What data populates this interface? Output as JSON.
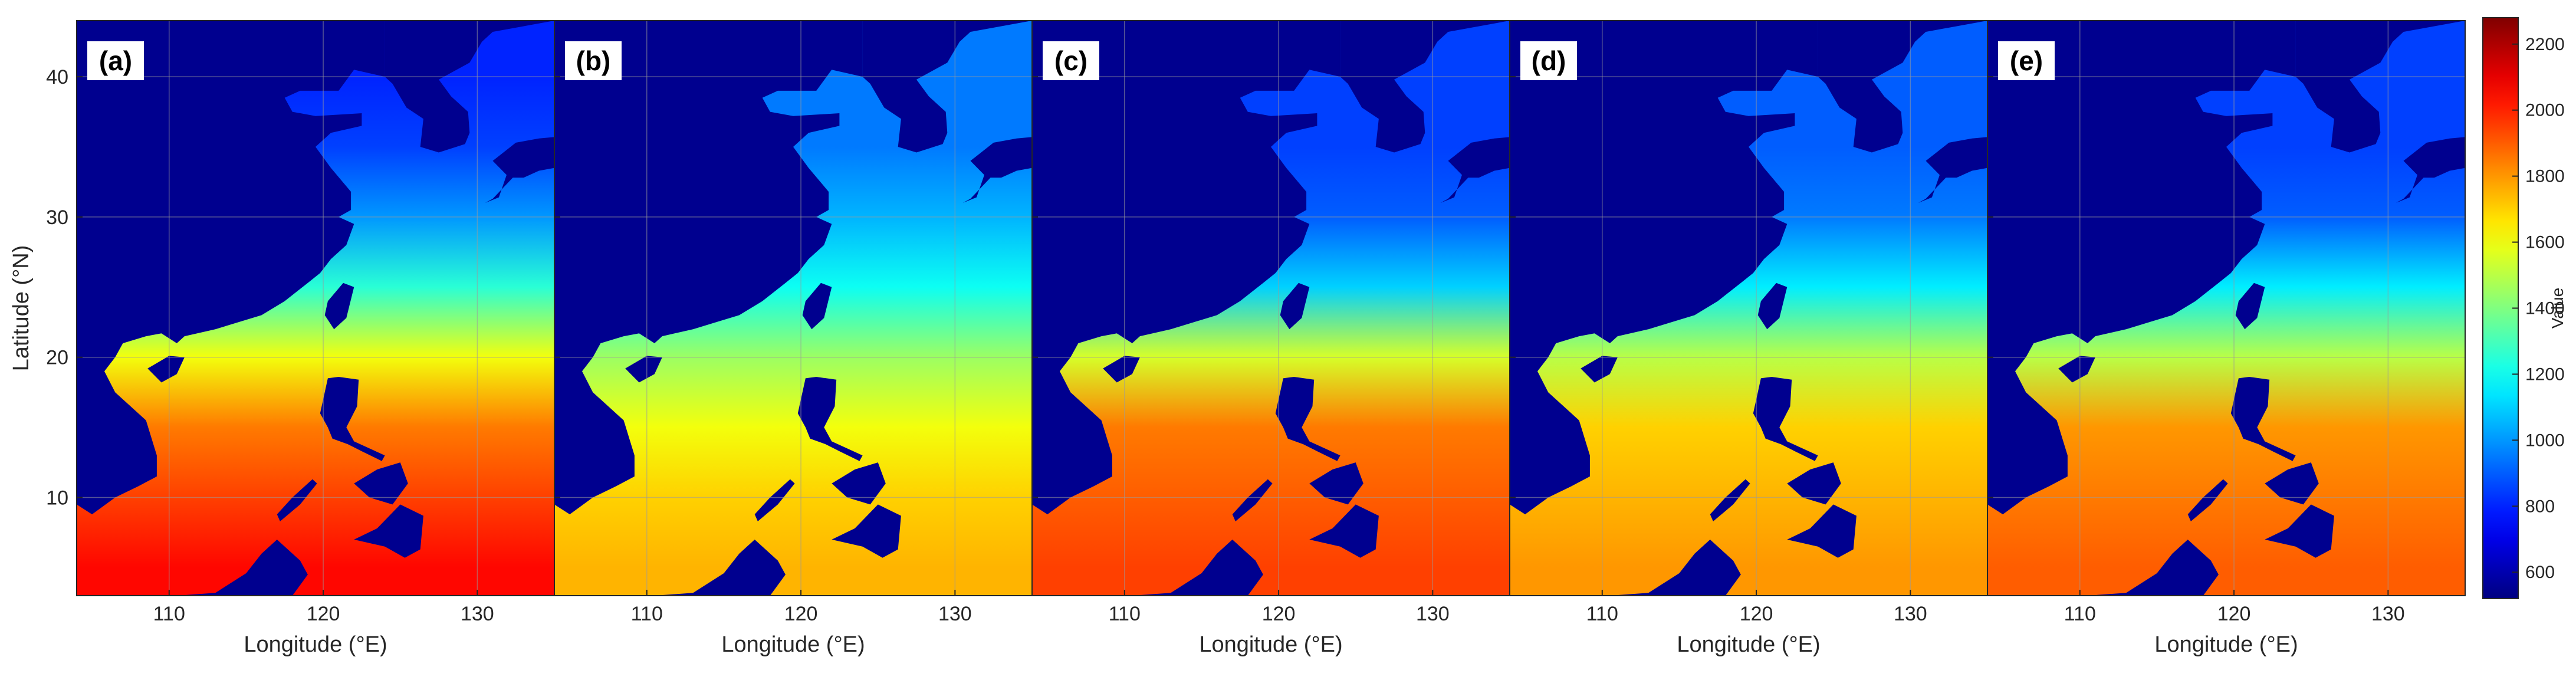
{
  "figure": {
    "colors": {
      "land": "#00008f",
      "axis": "#262626",
      "grid": "#9a9a9a",
      "label_box": "#ffffff"
    }
  },
  "chart_data": {
    "type": "heatmap",
    "colormap": "jet",
    "colorbar": {
      "title": "Value",
      "range": [
        520,
        2280
      ],
      "ticks": [
        600,
        800,
        1000,
        1200,
        1400,
        1600,
        1800,
        2000,
        2200
      ],
      "tick_labels": [
        "600",
        "800",
        "1000",
        "1200",
        "1400",
        "1600",
        "1800",
        "2000",
        "2200"
      ]
    },
    "xlabel": "Longitude (°E)",
    "ylabel": "Latitude (°N)",
    "xlim": [
      104,
      135
    ],
    "ylim": [
      3,
      44
    ],
    "xticks": [
      110,
      120,
      130
    ],
    "xtick_labels": [
      "110",
      "120",
      "130"
    ],
    "yticks": [
      10,
      20,
      30,
      40
    ],
    "ytick_labels": [
      "10",
      "20",
      "30",
      "40"
    ],
    "grid": true,
    "panels": [
      {
        "label": "(a)",
        "values_by_latitude": {
          "lat": [
            5,
            10,
            15,
            20,
            25,
            30,
            35,
            40
          ],
          "value": [
            2050,
            1950,
            1850,
            1600,
            1250,
            1000,
            850,
            800
          ]
        }
      },
      {
        "label": "(b)",
        "values_by_latitude": {
          "lat": [
            5,
            10,
            15,
            20,
            25,
            30,
            35,
            40
          ],
          "value": [
            1750,
            1700,
            1600,
            1450,
            1200,
            1050,
            950,
            950
          ]
        }
      },
      {
        "label": "(c)",
        "values_by_latitude": {
          "lat": [
            5,
            10,
            15,
            20,
            25,
            30,
            35,
            40
          ],
          "value": [
            1950,
            1900,
            1850,
            1550,
            1100,
            900,
            850,
            850
          ]
        }
      },
      {
        "label": "(d)",
        "values_by_latitude": {
          "lat": [
            5,
            10,
            15,
            20,
            25,
            30,
            35,
            40
          ],
          "value": [
            1800,
            1750,
            1700,
            1500,
            1150,
            950,
            900,
            900
          ]
        }
      },
      {
        "label": "(e)",
        "values_by_latitude": {
          "lat": [
            5,
            10,
            15,
            20,
            25,
            30,
            35,
            40
          ],
          "value": [
            1900,
            1850,
            1800,
            1500,
            1150,
            900,
            850,
            850
          ]
        }
      }
    ]
  }
}
